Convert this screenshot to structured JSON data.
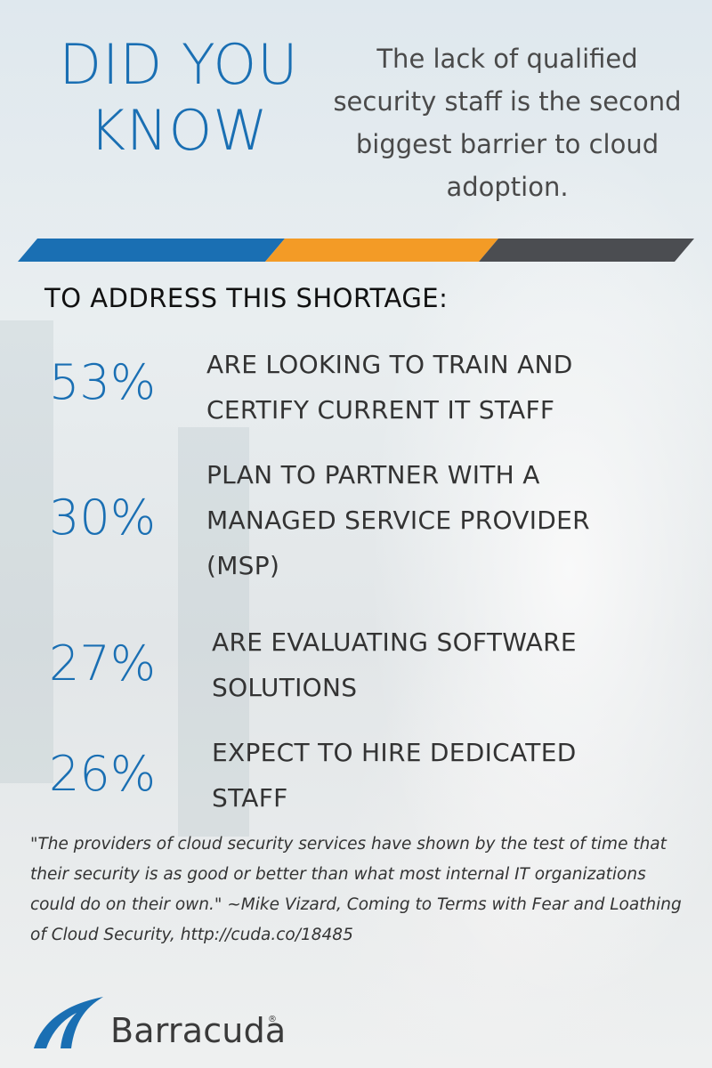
{
  "headline": {
    "line1": "DID YOU",
    "line2": "KNOW"
  },
  "intro": "The lack of qualified security staff is the second biggest barrier to cloud adoption.",
  "stripe_colors": {
    "blue": "#1a6fb3",
    "orange": "#f39b26",
    "gray": "#4b4d51"
  },
  "section_title": "TO ADDRESS THIS SHORTAGE:",
  "stats": [
    {
      "pct": "53%",
      "lines": [
        "ARE LOOKING TO TRAIN AND",
        "CERTIFY CURRENT IT STAFF"
      ]
    },
    {
      "pct": "30%",
      "lines": [
        "PLAN TO PARTNER WITH A",
        "MANAGED SERVICE PROVIDER",
        "(MSP)"
      ]
    },
    {
      "pct": "27%",
      "lines": [
        "ARE EVALUATING SOFTWARE",
        "SOLUTIONS"
      ]
    },
    {
      "pct": "26%",
      "lines": [
        "EXPECT TO HIRE DEDICATED",
        "STAFF"
      ]
    }
  ],
  "quote": "\"The providers of cloud security services have shown by the test of time that their security is as good or better than what most internal IT organizations could do on their own.\"  ~Mike Vizard, Coming to Terms with Fear and Loathing of Cloud Security,  http://cuda.co/18485",
  "logo": {
    "text": "Barracuda",
    "reg": "®",
    "icon": "barracuda-fin-icon",
    "color": "#1a6fb3"
  }
}
